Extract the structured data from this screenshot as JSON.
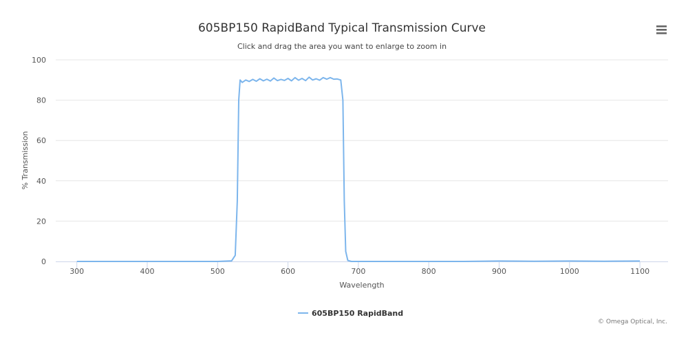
{
  "menu": {
    "icon": "hamburger-menu-icon"
  },
  "credits": "© Omega Optical, Inc.",
  "colors": {
    "series": "#7cb5ec",
    "grid": "#e6e6e6",
    "axis": "#ccd6eb"
  },
  "chart_data": {
    "type": "line",
    "title": "605BP150 RapidBand Typical Transmission Curve",
    "subtitle": "Click and drag the area you want to enlarge to zoom in",
    "xlabel": "Wavelength",
    "ylabel": "% Transmission",
    "xlim": [
      270,
      1140
    ],
    "ylim": [
      0,
      100
    ],
    "xticks": [
      300,
      400,
      500,
      600,
      700,
      800,
      900,
      1000,
      1100
    ],
    "yticks": [
      0,
      20,
      40,
      60,
      80,
      100
    ],
    "grid": true,
    "legend": "bottom-center",
    "series": [
      {
        "name": "605BP150 RapidBand",
        "x": [
          300,
          350,
          400,
          450,
          500,
          520,
          525,
          528,
          530,
          532,
          535,
          540,
          545,
          550,
          555,
          560,
          565,
          570,
          575,
          580,
          585,
          590,
          595,
          600,
          605,
          610,
          615,
          620,
          625,
          630,
          635,
          640,
          645,
          650,
          655,
          660,
          665,
          670,
          675,
          678,
          680,
          682,
          685,
          690,
          700,
          750,
          800,
          850,
          900,
          950,
          1000,
          1050,
          1100
        ],
        "y": [
          0,
          0,
          0,
          0,
          0,
          0.3,
          3,
          30,
          80,
          90,
          88.8,
          90,
          89.3,
          90.3,
          89.4,
          90.6,
          89.6,
          90.4,
          89.5,
          91,
          89.7,
          90.3,
          89.8,
          90.8,
          89.6,
          91.2,
          89.9,
          90.8,
          89.7,
          91.4,
          90,
          90.6,
          89.9,
          91.2,
          90.4,
          91.2,
          90.4,
          90.5,
          90,
          80,
          30,
          5,
          0.5,
          0,
          0,
          0,
          0,
          0,
          0.2,
          0.1,
          0.2,
          0.1,
          0.2
        ]
      }
    ]
  }
}
